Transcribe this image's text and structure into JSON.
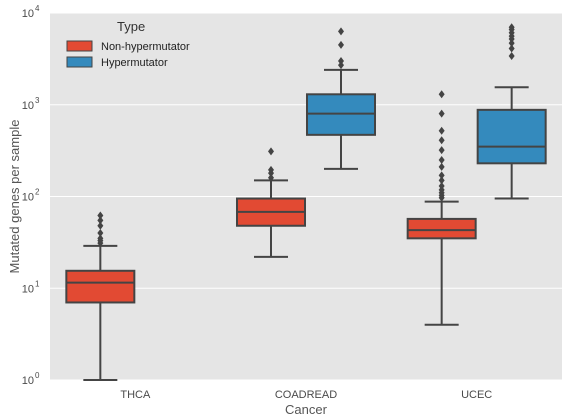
{
  "chart_data": {
    "type": "box",
    "xlabel": "Cancer",
    "ylabel": "Mutated genes per sample",
    "yscale": "log",
    "ylim": [
      1,
      10000
    ],
    "y_ticks": [
      {
        "value": 1,
        "base": "10",
        "exp": "0"
      },
      {
        "value": 10,
        "base": "10",
        "exp": "1"
      },
      {
        "value": 100,
        "base": "10",
        "exp": "2"
      },
      {
        "value": 1000,
        "base": "10",
        "exp": "3"
      },
      {
        "value": 10000,
        "base": "10",
        "exp": "4"
      }
    ],
    "grid": true,
    "legend": {
      "title": "Type",
      "placement": "top-left"
    },
    "categories": [
      "THCA",
      "COADREAD",
      "UCEC"
    ],
    "series": [
      {
        "name": "Non-hypermutator",
        "color": "#e24a33",
        "boxes": [
          {
            "category": "THCA",
            "whisker_low": 1,
            "q1": 7,
            "median": 11.5,
            "q3": 15.5,
            "whisker_high": 29,
            "outliers": [
              31,
              33,
              35,
              40,
              48,
              55,
              62
            ]
          },
          {
            "category": "COADREAD",
            "whisker_low": 22,
            "q1": 48,
            "median": 68,
            "q3": 95,
            "whisker_high": 150,
            "outliers": [
              160,
              180,
              195,
              310
            ]
          },
          {
            "category": "UCEC",
            "whisker_low": 4,
            "q1": 35,
            "median": 43,
            "q3": 57,
            "whisker_high": 88,
            "outliers": [
              97,
              103,
              110,
              118,
              130,
              150,
              170,
              210,
              250,
              320,
              410,
              520,
              800,
              1300
            ]
          }
        ]
      },
      {
        "name": "Hypermutator",
        "color": "#348abd",
        "boxes": [
          {
            "category": "COADREAD",
            "whisker_low": 200,
            "q1": 470,
            "median": 800,
            "q3": 1300,
            "whisker_high": 2400,
            "outliers": [
              2700,
              3000,
              4500,
              6300
            ]
          },
          {
            "category": "UCEC",
            "whisker_low": 95,
            "q1": 230,
            "median": 350,
            "q3": 880,
            "whisker_high": 1550,
            "outliers": [
              3400,
              4100,
              4700,
              5200,
              5600,
              6100,
              6600,
              7000
            ]
          }
        ]
      }
    ]
  }
}
